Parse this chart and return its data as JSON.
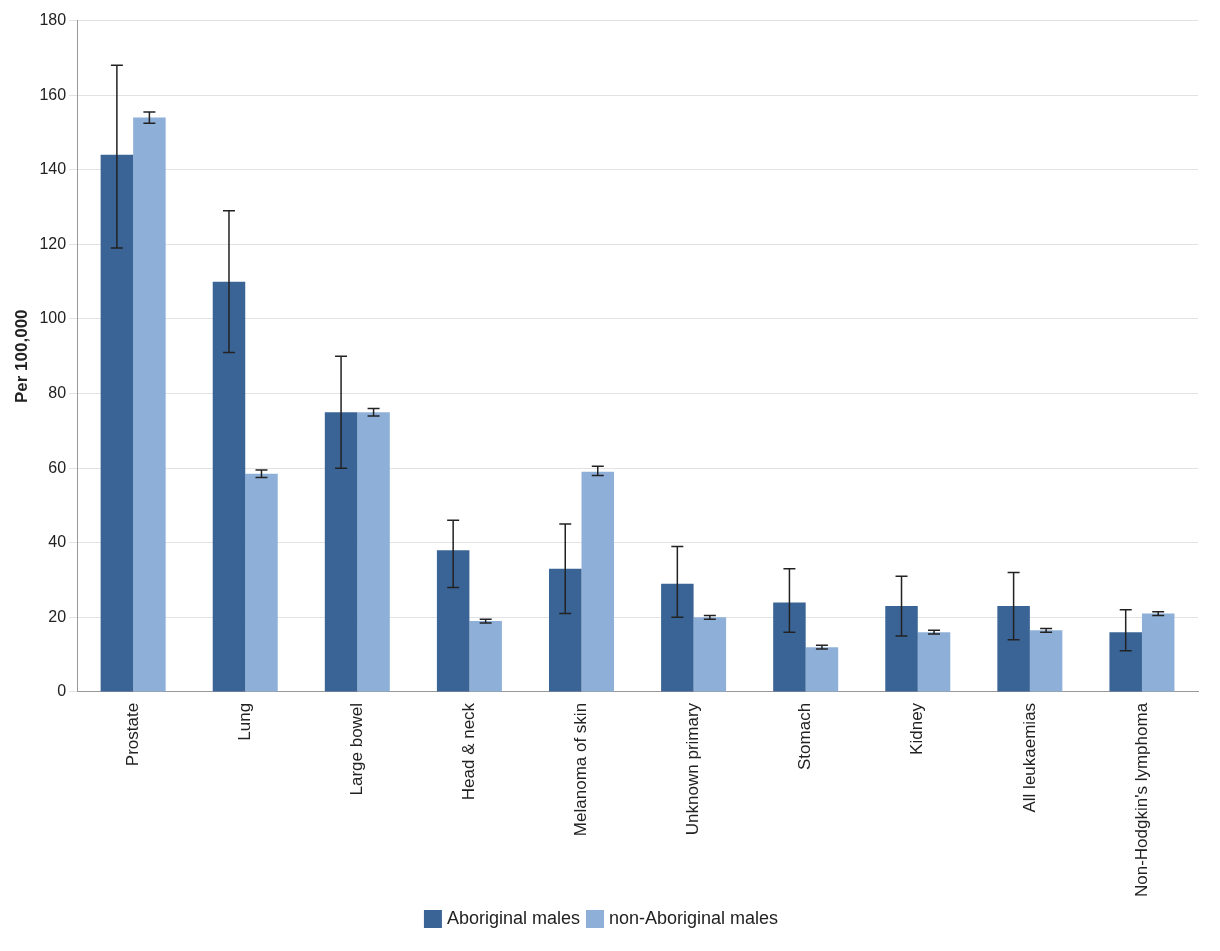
{
  "chart_data": {
    "type": "bar",
    "ylabel": "Per 100,000",
    "categories": [
      "Prostate",
      "Lung",
      "Large bowel",
      "Head & neck",
      "Melanoma of skin",
      "Unknown primary",
      "Stomach",
      "Kidney",
      "All leukaemias",
      "Non-Hodgkin's lymphoma"
    ],
    "series": [
      {
        "name": "Aboriginal males",
        "color": "#3a6496",
        "values": [
          144,
          110,
          75,
          38,
          33,
          29,
          24,
          23,
          23,
          16
        ],
        "errors": [
          [
            119,
            168
          ],
          [
            91,
            129
          ],
          [
            60,
            90
          ],
          [
            28,
            46
          ],
          [
            21,
            45
          ],
          [
            20,
            39
          ],
          [
            16,
            33
          ],
          [
            15,
            31
          ],
          [
            14,
            32
          ],
          [
            11,
            22
          ]
        ]
      },
      {
        "name": "non-Aboriginal males",
        "color": "#8eb0d8",
        "values": [
          154,
          58.5,
          75,
          19,
          59,
          20,
          12,
          16,
          16.5,
          21
        ],
        "errors": [
          [
            152.5,
            155.5
          ],
          [
            57.5,
            59.5
          ],
          [
            74,
            76
          ],
          [
            18.5,
            19.5
          ],
          [
            58,
            60.5
          ],
          [
            19.5,
            20.5
          ],
          [
            11.5,
            12.5
          ],
          [
            15.5,
            16.5
          ],
          [
            16,
            17
          ],
          [
            20.5,
            21.5
          ]
        ]
      }
    ],
    "ylim": [
      0,
      180
    ],
    "yticks": [
      0,
      20,
      40,
      60,
      80,
      100,
      120,
      140,
      160,
      180
    ],
    "grid": "y",
    "legend": "bottom"
  }
}
